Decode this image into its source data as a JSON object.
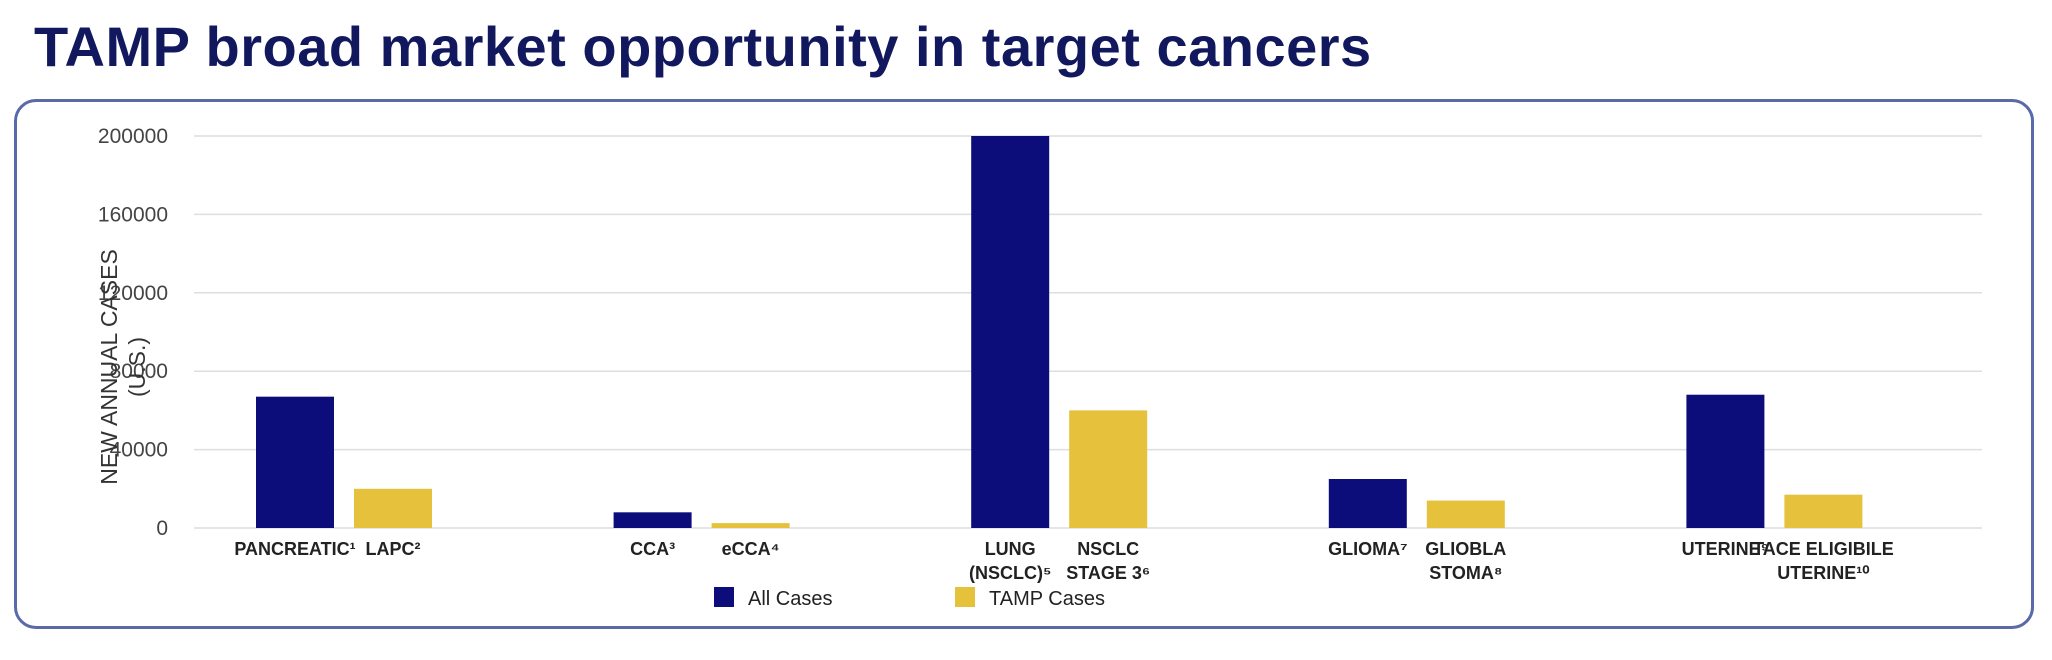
{
  "title": "TAMP broad market opportunity in target cancers",
  "colors": {
    "all_cases": "#0c0c7a",
    "tamp_cases": "#e6c23c",
    "title": "#12185e",
    "frame": "#5a6aa8"
  },
  "chart_data": {
    "type": "bar",
    "ylabel": [
      "NEW ANNUAL CASES",
      "(U.S.)"
    ],
    "ylim": [
      0,
      200000
    ],
    "yticks": [
      0,
      40000,
      80000,
      120000,
      160000,
      200000
    ],
    "grid": true,
    "legend_position": "bottom",
    "legend": [
      {
        "label": "All Cases",
        "series": "all"
      },
      {
        "label": "TAMP Cases",
        "series": "tamp"
      }
    ],
    "groups": [
      {
        "bars": [
          {
            "series": "all",
            "value": 67000,
            "label": [
              "PANCREATIC¹"
            ]
          },
          {
            "series": "tamp",
            "value": 20000,
            "label": [
              "LAPC²"
            ]
          }
        ]
      },
      {
        "bars": [
          {
            "series": "all",
            "value": 8000,
            "label": [
              "CCA³"
            ]
          },
          {
            "series": "tamp",
            "value": 2500,
            "label": [
              "eCCA⁴"
            ]
          }
        ]
      },
      {
        "bars": [
          {
            "series": "all",
            "value": 200000,
            "label": [
              "LUNG",
              "(NSCLC)⁵"
            ]
          },
          {
            "series": "tamp",
            "value": 60000,
            "label": [
              "NSCLC",
              "STAGE 3⁶"
            ]
          }
        ]
      },
      {
        "bars": [
          {
            "series": "all",
            "value": 25000,
            "label": [
              "GLIOMA⁷"
            ]
          },
          {
            "series": "tamp",
            "value": 14000,
            "label": [
              "GLIOBLA",
              "STOMA⁸"
            ]
          }
        ]
      },
      {
        "bars": [
          {
            "series": "all",
            "value": 68000,
            "label": [
              "UTERINE⁹"
            ]
          },
          {
            "series": "tamp",
            "value": 17000,
            "label": [
              "TACE ELIGIBILE",
              "UTERINE¹⁰"
            ]
          }
        ]
      }
    ]
  }
}
